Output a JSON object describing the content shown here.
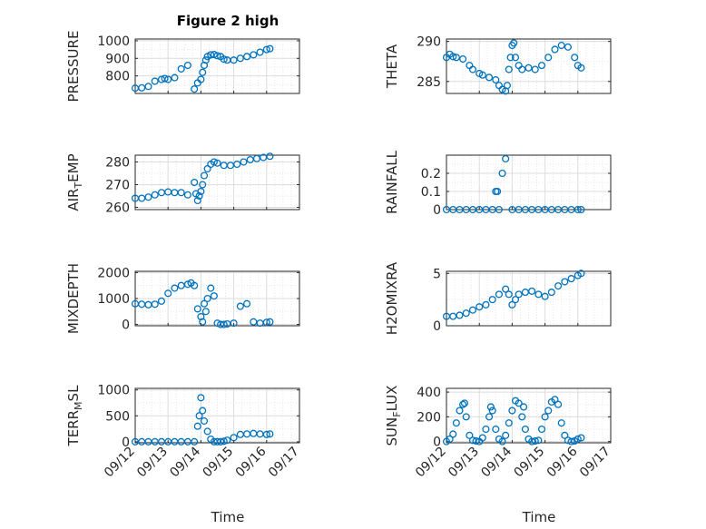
{
  "figure": {
    "title": "Figure 2 high",
    "xlabel": "Time",
    "marker_color": "#0072BD"
  },
  "chart_data": [
    {
      "type": "scatter",
      "name": "pressure",
      "title": "Figure 2 high",
      "ylabel": "PRESSURE",
      "ylabel_main": "PRESSURE",
      "ylabel_sub": "",
      "xlim": [
        0,
        5
      ],
      "ylim": [
        700,
        1010
      ],
      "yticks": [
        800,
        900,
        1000
      ],
      "xticks": [],
      "xticklabels": [],
      "grid": true,
      "minor_grid": true,
      "x": [
        0.0,
        0.2,
        0.4,
        0.6,
        0.8,
        0.9,
        1.0,
        1.2,
        1.4,
        1.6,
        1.8,
        1.9,
        2.0,
        2.05,
        2.1,
        2.15,
        2.2,
        2.3,
        2.4,
        2.5,
        2.6,
        2.7,
        2.8,
        3.0,
        3.2,
        3.4,
        3.6,
        3.8,
        4.0,
        4.1
      ],
      "y": [
        730,
        732,
        740,
        770,
        780,
        785,
        780,
        790,
        840,
        860,
        725,
        760,
        780,
        820,
        860,
        890,
        910,
        920,
        922,
        915,
        910,
        895,
        890,
        890,
        900,
        910,
        920,
        935,
        950,
        955
      ]
    },
    {
      "type": "scatter",
      "name": "theta",
      "ylabel": "THETA",
      "ylabel_main": "THETA",
      "ylabel_sub": "",
      "xlim": [
        0,
        5
      ],
      "ylim": [
        283.5,
        290.3
      ],
      "yticks": [
        285,
        290
      ],
      "xticks": [],
      "xticklabels": [],
      "grid": true,
      "minor_grid": true,
      "x": [
        0.0,
        0.1,
        0.2,
        0.3,
        0.5,
        0.7,
        0.8,
        1.0,
        1.1,
        1.3,
        1.5,
        1.6,
        1.7,
        1.8,
        1.85,
        1.9,
        1.95,
        2.0,
        2.05,
        2.1,
        2.2,
        2.3,
        2.5,
        2.7,
        2.9,
        3.1,
        3.3,
        3.5,
        3.7,
        3.9,
        4.0,
        4.1
      ],
      "y": [
        288,
        288.4,
        288.1,
        288,
        287.8,
        287,
        286.5,
        286,
        285.8,
        285.5,
        285.2,
        284.5,
        284,
        283.8,
        284.5,
        286.5,
        288,
        289.5,
        289.8,
        288,
        287,
        286.5,
        286.7,
        286.5,
        287,
        288,
        289,
        289.5,
        289.3,
        288,
        287,
        286.7
      ]
    },
    {
      "type": "scatter",
      "name": "air_temp",
      "ylabel": "AIR_TEMP",
      "ylabel_main": "AIR",
      "ylabel_sub": "T",
      "ylabel_rest": "EMP",
      "xlim": [
        0,
        5
      ],
      "ylim": [
        259,
        283
      ],
      "yticks": [
        260,
        270,
        280
      ],
      "xticks": [],
      "xticklabels": [],
      "grid": true,
      "minor_grid": true,
      "x": [
        0.0,
        0.2,
        0.4,
        0.6,
        0.8,
        1.0,
        1.2,
        1.4,
        1.6,
        1.8,
        1.85,
        1.9,
        1.95,
        2.0,
        2.05,
        2.1,
        2.2,
        2.3,
        2.4,
        2.5,
        2.7,
        2.9,
        3.1,
        3.3,
        3.5,
        3.7,
        3.9,
        4.1
      ],
      "y": [
        264,
        264,
        264.5,
        265.5,
        266.5,
        266.8,
        266.5,
        266.5,
        265.5,
        271,
        266,
        263,
        265,
        267,
        270,
        274,
        277,
        279,
        280,
        279.5,
        278.5,
        278.5,
        279,
        280,
        281,
        281.5,
        282,
        282.5
      ]
    },
    {
      "type": "scatter",
      "name": "rainfall",
      "ylabel": "RAINFALL",
      "ylabel_main": "RAINFALL",
      "ylabel_sub": "",
      "xlim": [
        0,
        5
      ],
      "ylim": [
        0,
        0.3
      ],
      "yticks": [
        0,
        0.1,
        0.2
      ],
      "ytickstrings": [
        "0",
        "0.1",
        "0.2"
      ],
      "xticks": [],
      "xticklabels": [],
      "grid": true,
      "minor_grid": true,
      "x": [
        0.0,
        0.2,
        0.4,
        0.6,
        0.8,
        1.0,
        1.2,
        1.4,
        1.5,
        1.55,
        1.6,
        1.7,
        1.8,
        2.0,
        2.2,
        2.4,
        2.6,
        2.8,
        3.0,
        3.2,
        3.4,
        3.6,
        3.8,
        4.0,
        4.1
      ],
      "y": [
        0,
        0,
        0,
        0,
        0,
        0,
        0,
        0,
        0.1,
        0.1,
        0,
        0.2,
        0.28,
        0,
        0,
        0,
        0,
        0,
        0,
        0,
        0,
        0,
        0,
        0,
        0
      ]
    },
    {
      "type": "scatter",
      "name": "mixdepth",
      "ylabel": "MIXDEPTH",
      "ylabel_main": "MIXDEPTH",
      "ylabel_sub": "",
      "xlim": [
        0,
        5
      ],
      "ylim": [
        -50,
        2050
      ],
      "yticks": [
        0,
        1000,
        2000
      ],
      "xticks": [],
      "xticklabels": [],
      "grid": true,
      "minor_grid": true,
      "x": [
        0.0,
        0.2,
        0.4,
        0.6,
        0.8,
        1.0,
        1.2,
        1.4,
        1.6,
        1.7,
        1.8,
        1.9,
        2.0,
        2.05,
        2.1,
        2.15,
        2.2,
        2.3,
        2.4,
        2.5,
        2.6,
        2.7,
        2.8,
        3.0,
        3.2,
        3.4,
        3.6,
        3.8,
        4.0,
        4.1
      ],
      "y": [
        800,
        780,
        760,
        780,
        900,
        1200,
        1400,
        1500,
        1550,
        1600,
        1500,
        600,
        300,
        100,
        800,
        500,
        1000,
        1400,
        1100,
        50,
        0,
        0,
        20,
        50,
        700,
        800,
        100,
        50,
        80,
        100
      ]
    },
    {
      "type": "scatter",
      "name": "h2omixra",
      "ylabel": "H2OMIXRA",
      "ylabel_main": "H2OMIXRA",
      "ylabel_sub": "",
      "xlim": [
        0,
        5
      ],
      "ylim": [
        0,
        5.2
      ],
      "yticks": [
        0,
        5
      ],
      "xticks": [],
      "xticklabels": [],
      "grid": true,
      "minor_grid": true,
      "x": [
        0.0,
        0.2,
        0.4,
        0.6,
        0.8,
        1.0,
        1.2,
        1.4,
        1.6,
        1.8,
        1.9,
        2.0,
        2.1,
        2.2,
        2.4,
        2.6,
        2.8,
        3.0,
        3.2,
        3.4,
        3.6,
        3.8,
        4.0,
        4.1
      ],
      "y": [
        0.9,
        0.9,
        1.0,
        1.2,
        1.5,
        1.8,
        2.0,
        2.5,
        3.0,
        3.5,
        3.0,
        2.0,
        2.5,
        3.0,
        3.2,
        3.3,
        3.0,
        2.8,
        3.2,
        3.8,
        4.2,
        4.5,
        4.8,
        5.0
      ]
    },
    {
      "type": "scatter",
      "name": "terr_msl",
      "ylabel": "TERR_MSL",
      "ylabel_main": "TERR",
      "ylabel_sub": "M",
      "ylabel_rest": "SL",
      "xlim": [
        0,
        5
      ],
      "ylim": [
        -20,
        1030
      ],
      "yticks": [
        0,
        500,
        1000
      ],
      "xticks": [
        0,
        1,
        2,
        3,
        4,
        5
      ],
      "xticklabels": [
        "09/12",
        "09/13",
        "09/14",
        "09/15",
        "09/16",
        "09/17"
      ],
      "grid": true,
      "minor_grid": true,
      "x": [
        0.0,
        0.2,
        0.4,
        0.6,
        0.8,
        1.0,
        1.2,
        1.4,
        1.6,
        1.8,
        1.9,
        1.95,
        2.0,
        2.05,
        2.1,
        2.2,
        2.3,
        2.4,
        2.5,
        2.6,
        2.7,
        2.8,
        3.0,
        3.2,
        3.4,
        3.6,
        3.8,
        4.0,
        4.1
      ],
      "y": [
        0,
        0,
        0,
        0,
        0,
        0,
        0,
        0,
        0,
        0,
        300,
        500,
        850,
        600,
        400,
        200,
        50,
        0,
        0,
        0,
        10,
        30,
        80,
        140,
        150,
        160,
        150,
        140,
        150
      ]
    },
    {
      "type": "scatter",
      "name": "sun_flux",
      "ylabel": "SUN_FLUX",
      "ylabel_main": "SUN",
      "ylabel_sub": "F",
      "ylabel_rest": "LUX",
      "xlim": [
        0,
        5
      ],
      "ylim": [
        -10,
        430
      ],
      "yticks": [
        0,
        200,
        400
      ],
      "xticks": [
        0,
        1,
        2,
        3,
        4,
        5
      ],
      "xticklabels": [
        "09/12",
        "09/13",
        "09/14",
        "09/15",
        "09/16",
        "09/17"
      ],
      "grid": true,
      "minor_grid": true,
      "x": [
        0.0,
        0.1,
        0.2,
        0.3,
        0.4,
        0.5,
        0.55,
        0.6,
        0.7,
        0.8,
        0.9,
        1.0,
        1.1,
        1.2,
        1.3,
        1.35,
        1.4,
        1.5,
        1.6,
        1.7,
        1.8,
        1.9,
        2.0,
        2.1,
        2.2,
        2.3,
        2.35,
        2.4,
        2.5,
        2.6,
        2.7,
        2.8,
        2.9,
        3.0,
        3.1,
        3.2,
        3.3,
        3.4,
        3.5,
        3.6,
        3.7,
        3.8,
        3.9,
        4.0,
        4.1
      ],
      "y": [
        0,
        20,
        60,
        150,
        250,
        300,
        310,
        200,
        50,
        10,
        5,
        0,
        30,
        100,
        200,
        280,
        250,
        100,
        20,
        0,
        50,
        150,
        250,
        330,
        310,
        200,
        280,
        100,
        20,
        0,
        5,
        10,
        100,
        200,
        250,
        320,
        340,
        300,
        150,
        50,
        10,
        0,
        5,
        20,
        30
      ]
    }
  ]
}
